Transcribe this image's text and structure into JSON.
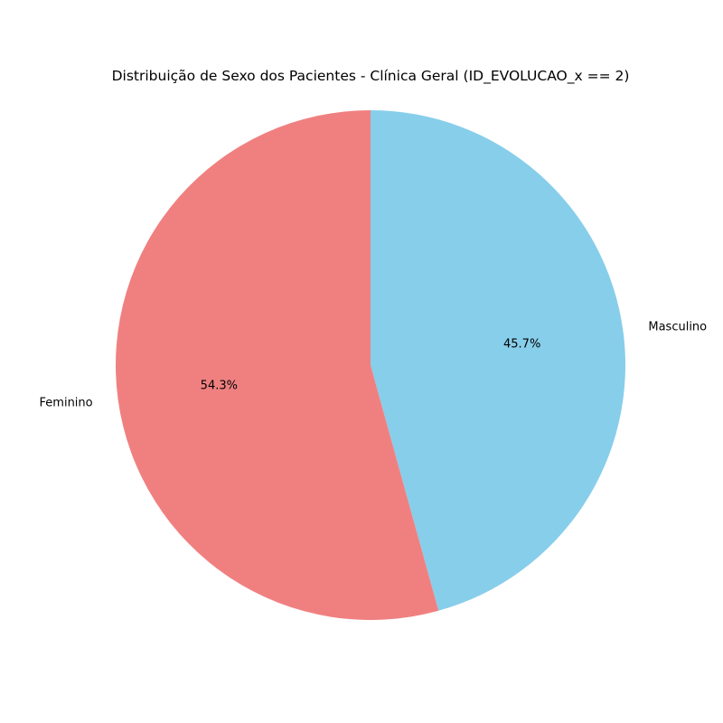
{
  "chart_data": {
    "type": "pie",
    "title": "Distribuição de Sexo dos Pacientes - Clínica Geral (ID_EVOLUCAO_x == 2)",
    "slices": [
      {
        "label": "Masculino",
        "percent_label": "45.7%",
        "value": 45.7,
        "color": "#87CEEB"
      },
      {
        "label": "Feminino",
        "percent_label": "54.3%",
        "value": 54.3,
        "color": "#F08080"
      }
    ],
    "start_angle_deg": 90,
    "direction": "clockwise"
  }
}
